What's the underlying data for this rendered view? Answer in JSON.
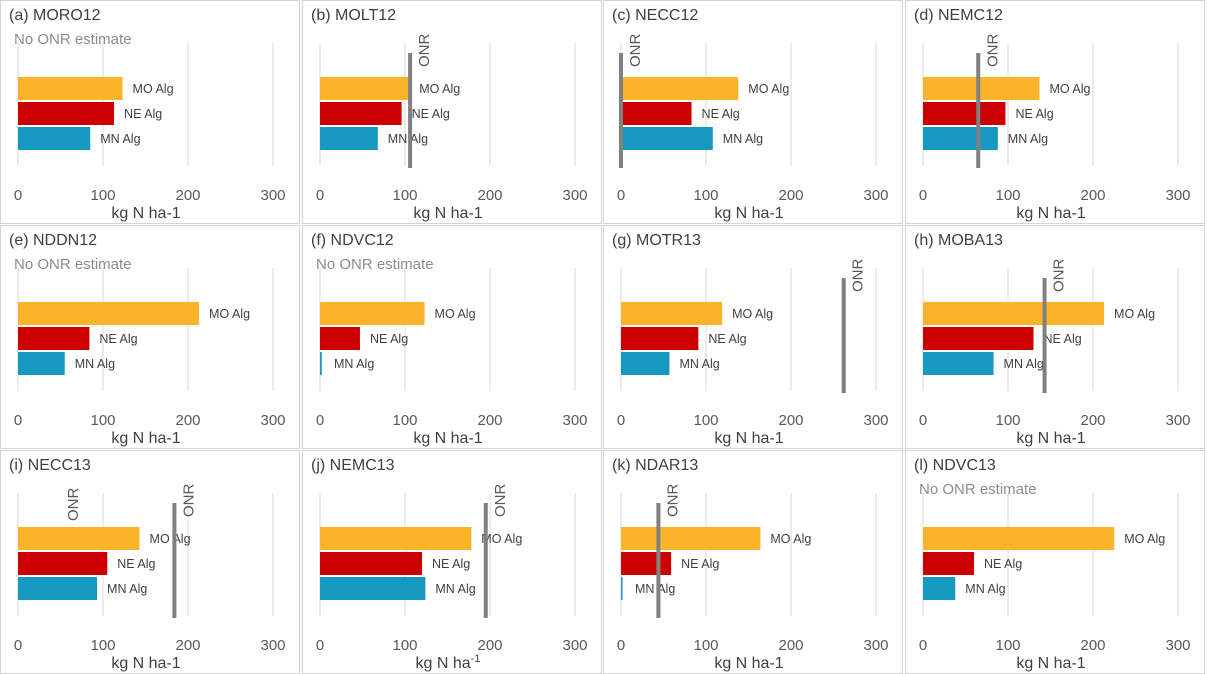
{
  "chart_data": [
    {
      "type": "bar",
      "title": "(a) MORO12",
      "note": "No ONR estimate",
      "xlabel": "kg N ha-1",
      "xlim": [
        0,
        300
      ],
      "xticks": [
        "0",
        "100",
        "200",
        "300"
      ],
      "categories": [
        "MO Alg",
        "NE Alg",
        "MN Alg"
      ],
      "values": [
        123,
        113,
        85
      ],
      "onr": null,
      "onr_label": ""
    },
    {
      "type": "bar",
      "title": "(b) MOLT12",
      "note": "",
      "xlabel": "kg N ha-1",
      "xlim": [
        0,
        300
      ],
      "xticks": [
        "0",
        "100",
        "200",
        "300"
      ],
      "categories": [
        "MO Alg",
        "NE Alg",
        "MN Alg"
      ],
      "values": [
        105,
        96,
        68
      ],
      "onr": 106,
      "onr_label": "ONR"
    },
    {
      "type": "bar",
      "title": "(c) NECC12",
      "note": "",
      "xlabel": "kg N ha-1",
      "xlim": [
        0,
        300
      ],
      "xticks": [
        "0",
        "100",
        "200",
        "300"
      ],
      "categories": [
        "MO Alg",
        "NE Alg",
        "MN Alg"
      ],
      "values": [
        138,
        83,
        108
      ],
      "onr": 0,
      "onr_label": "ONR"
    },
    {
      "type": "bar",
      "title": "(d) NEMC12",
      "note": "",
      "xlabel": "kg N ha-1",
      "xlim": [
        0,
        300
      ],
      "xticks": [
        "0",
        "100",
        "200",
        "300"
      ],
      "categories": [
        "MO Alg",
        "NE Alg",
        "MN Alg"
      ],
      "values": [
        137,
        97,
        88
      ],
      "onr": 65,
      "onr_label": "ONR"
    },
    {
      "type": "bar",
      "title": "(e) NDDN12",
      "note": "No ONR estimate",
      "xlabel": "kg N ha-1",
      "xlim": [
        0,
        300
      ],
      "xticks": [
        "0",
        "100",
        "200",
        "300"
      ],
      "categories": [
        "MO Alg",
        "NE Alg",
        "MN Alg"
      ],
      "values": [
        213,
        84,
        55
      ],
      "onr": null,
      "onr_label": ""
    },
    {
      "type": "bar",
      "title": "(f) NDVC12",
      "note": "No ONR estimate",
      "xlabel": "kg N ha-1",
      "xlim": [
        0,
        300
      ],
      "xticks": [
        "0",
        "100",
        "200",
        "300"
      ],
      "categories": [
        "MO Alg",
        "NE Alg",
        "MN Alg"
      ],
      "values": [
        123,
        47,
        2
      ],
      "onr": null,
      "onr_label": ""
    },
    {
      "type": "bar",
      "title": "(g) MOTR13",
      "note": "",
      "xlabel": "kg N ha-1",
      "xlim": [
        0,
        300
      ],
      "xticks": [
        "0",
        "100",
        "200",
        "300"
      ],
      "categories": [
        "MO Alg",
        "NE Alg",
        "MN Alg"
      ],
      "values": [
        119,
        91,
        57
      ],
      "onr": 262,
      "onr_label": "ONR"
    },
    {
      "type": "bar",
      "title": "(h) MOBA13",
      "note": "",
      "xlabel": "kg N ha-1",
      "xlim": [
        0,
        300
      ],
      "xticks": [
        "0",
        "100",
        "200",
        "300"
      ],
      "categories": [
        "MO Alg",
        "NE Alg",
        "MN Alg"
      ],
      "values": [
        213,
        130,
        83
      ],
      "onr": 143,
      "onr_label": "ONR"
    },
    {
      "type": "bar",
      "title": "(i) NECC13",
      "note": "",
      "xlabel": "kg N ha-1",
      "xlim": [
        0,
        300
      ],
      "xticks": [
        "0",
        "100",
        "200",
        "300"
      ],
      "categories": [
        "MO Alg",
        "NE Alg",
        "MN Alg"
      ],
      "values": [
        143,
        105,
        93
      ],
      "onr": 184,
      "onr_label": "ONR",
      "extra_label": "ONR"
    },
    {
      "type": "bar",
      "title": "(j) NEMC13",
      "note": "",
      "xlabel": "kg N ha",
      "xlabel_sup": "-1",
      "xlim": [
        0,
        300
      ],
      "xticks": [
        "0",
        "100",
        "200",
        "300"
      ],
      "categories": [
        "MO Alg",
        "NE Alg",
        "MN Alg"
      ],
      "values": [
        178,
        120,
        124
      ],
      "onr": 195,
      "onr_label": "ONR"
    },
    {
      "type": "bar",
      "title": "(k) NDAR13",
      "note": "",
      "xlabel": "kg N ha-1",
      "xlim": [
        0,
        300
      ],
      "xticks": [
        "0",
        "100",
        "200",
        "300"
      ],
      "categories": [
        "MO Alg",
        "NE Alg",
        "MN Alg"
      ],
      "values": [
        164,
        59,
        1
      ],
      "onr": 44,
      "onr_label": "ONR"
    },
    {
      "type": "bar",
      "title": "(l) NDVC13",
      "note": "No ONR estimate",
      "xlabel": "kg N ha-1",
      "xlim": [
        0,
        300
      ],
      "xticks": [
        "0",
        "100",
        "200",
        "300"
      ],
      "categories": [
        "MO Alg",
        "NE Alg",
        "MN Alg"
      ],
      "values": [
        225,
        60,
        38
      ],
      "onr": null,
      "onr_label": ""
    }
  ],
  "colors": {
    "mo_alg": "#FBB32A",
    "ne_alg": "#CC0000",
    "mn_alg": "#1599C0",
    "onr": "#808080",
    "grid": "#d9d9d9"
  }
}
